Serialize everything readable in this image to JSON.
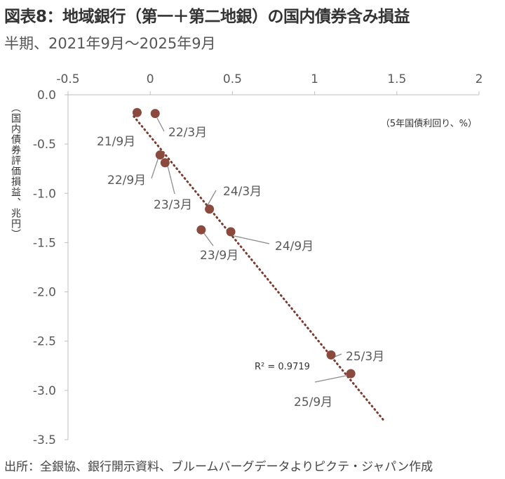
{
  "title": "図表8：地域銀行（第一＋第二地銀）の国内債券含み損益",
  "subtitle": "半期、2021年9月～2025年9月",
  "source": "出所：全銀協、銀行開示資料、ブルームバーグデータよりピクテ・ジャパン作成",
  "chart_data": {
    "type": "scatter",
    "xlabel": "（5年国債利回り、%）",
    "ylabel": "（国内債券評価損益、兆円）",
    "xlim": [
      -0.5,
      2
    ],
    "ylim": [
      -3.5,
      0
    ],
    "x_ticks": [
      "-0.5",
      "0",
      "0.5",
      "1",
      "1.5",
      "2"
    ],
    "y_ticks": [
      "0.0",
      "-0.5",
      "-1.0",
      "-1.5",
      "-2.0",
      "-2.5",
      "-3.0",
      "-3.5"
    ],
    "x_axis_position": "top",
    "grid": false,
    "point_color": "#8B4A3E",
    "trendline": {
      "type": "linear",
      "color": "#7B3B2E",
      "style": "dotted",
      "r2_label": "R² = 0.9719",
      "x_range": [
        -0.1,
        1.42
      ]
    },
    "points": [
      {
        "label": "21/9月",
        "x": -0.08,
        "y": -0.18
      },
      {
        "label": "22/3月",
        "x": 0.03,
        "y": -0.19
      },
      {
        "label": "22/9月",
        "x": 0.06,
        "y": -0.61
      },
      {
        "label": "23/3月",
        "x": 0.09,
        "y": -0.69
      },
      {
        "label": "24/3月",
        "x": 0.36,
        "y": -1.16
      },
      {
        "label": "23/9月",
        "x": 0.31,
        "y": -1.37
      },
      {
        "label": "24/9月",
        "x": 0.49,
        "y": -1.39
      },
      {
        "label": "25/3月",
        "x": 1.1,
        "y": -2.64
      },
      {
        "label": "25/9月",
        "x": 1.22,
        "y": -2.83
      }
    ]
  }
}
